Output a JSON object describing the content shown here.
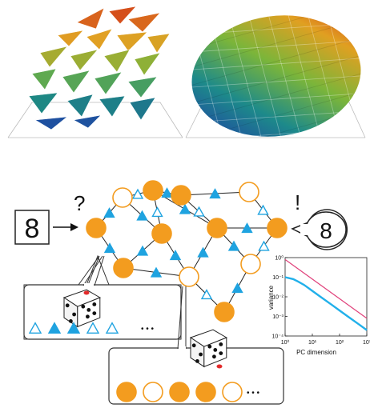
{
  "top_left_panel": {
    "kind": "exploded-triangulated-surface"
  },
  "top_right_panel": {
    "kind": "solid-triangulated-ellipsoid"
  },
  "network": {
    "input_symbol": "8",
    "question_mark": "?",
    "exclamation_mark": "!",
    "output_text": "8",
    "node_fill": "#f39c1f",
    "triangle_fill": "#1fa3e0"
  },
  "callout_triangles": {
    "sequence": [
      "open",
      "filled",
      "filled",
      "open",
      "open"
    ],
    "ellipsis": "• • •"
  },
  "callout_circles": {
    "sequence": [
      "filled",
      "open",
      "filled",
      "filled",
      "open"
    ],
    "ellipsis": "• • •"
  },
  "chart_data": {
    "type": "line",
    "xlabel": "PC dimension",
    "ylabel": "variance",
    "xscale": "log",
    "yscale": "log",
    "x_tick_labels": [
      "10⁰",
      "10¹",
      "10²",
      "10³"
    ],
    "y_tick_labels": [
      "10⁰",
      "10⁻¹",
      "10⁻²",
      "10⁻³",
      "10⁻⁴"
    ],
    "xlim": [
      1,
      1000
    ],
    "ylim": [
      0.0001,
      1
    ],
    "series": [
      {
        "style": "reference-line",
        "color": "#e0407a",
        "x": [
          1,
          10,
          100,
          1000
        ],
        "y": [
          0.8,
          0.08,
          0.008,
          0.0008
        ]
      },
      {
        "style": "data",
        "color": "#21b0ea",
        "x": [
          1,
          2,
          3,
          5,
          10,
          20,
          50,
          100,
          200,
          500,
          1000
        ],
        "y": [
          0.1,
          0.08,
          0.06,
          0.04,
          0.02,
          0.01,
          0.004,
          0.002,
          0.001,
          0.0004,
          0.0002
        ]
      }
    ],
    "grid": false
  }
}
